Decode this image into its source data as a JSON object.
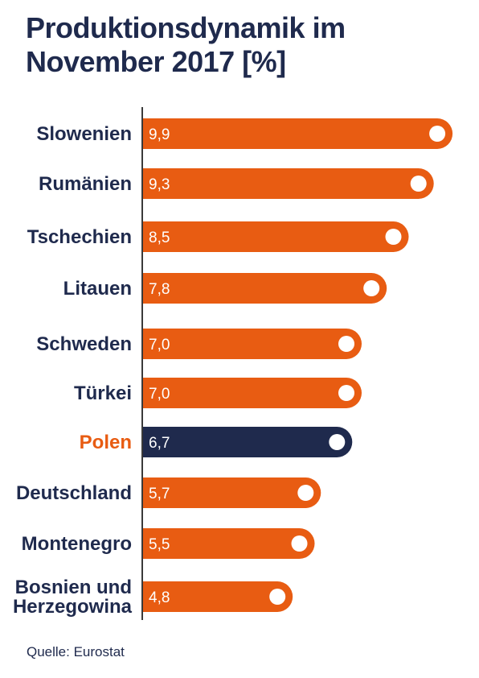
{
  "title_line1": "Produktionsdynamik im",
  "title_line2": "November 2017 [%]",
  "source": "Quelle: Eurostat",
  "colors": {
    "bar": "#e85c12",
    "highlight_bar": "#1f2a4d",
    "label": "#1f2a4d",
    "highlight_label": "#e85c12",
    "axis": "#3a3a3a",
    "dot": "#ffffff"
  },
  "chart_data": {
    "type": "bar",
    "orientation": "horizontal",
    "title": "Produktionsdynamik im November 2017 [%]",
    "categories": [
      "Slowenien",
      "Rumänien",
      "Tschechien",
      "Litauen",
      "Schweden",
      "Türkei",
      "Polen",
      "Deutschland",
      "Montenegro",
      "Bosnien und Herzegowina"
    ],
    "category_lines": [
      [
        "Slowenien"
      ],
      [
        "Rumänien"
      ],
      [
        "Tschechien"
      ],
      [
        "Litauen"
      ],
      [
        "Schweden"
      ],
      [
        "Türkei"
      ],
      [
        "Polen"
      ],
      [
        "Deutschland"
      ],
      [
        "Montenegro"
      ],
      [
        "Bosnien und",
        "Herzegowina"
      ]
    ],
    "values": [
      9.9,
      9.3,
      8.5,
      7.8,
      7.0,
      7.0,
      6.7,
      5.7,
      5.5,
      4.8
    ],
    "value_labels": [
      "9,9",
      "9,3",
      "8,5",
      "7,8",
      "7,0",
      "7,0",
      "6,7",
      "5,7",
      "5,5",
      "4,8"
    ],
    "highlight": "Polen",
    "xlim": [
      0,
      10
    ],
    "grid": false,
    "legend": "none"
  }
}
